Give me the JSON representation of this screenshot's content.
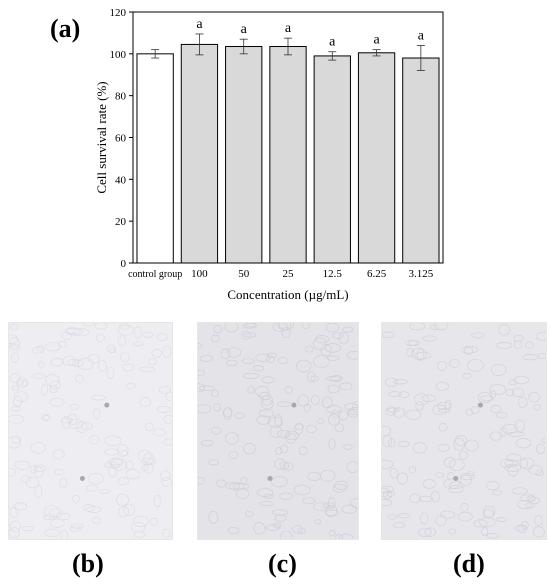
{
  "panels": {
    "a": "(a)",
    "b": "(b)",
    "c": "(c)",
    "d": "(d)"
  },
  "chart_data": {
    "type": "bar",
    "xlabel": "Concentration (µg/mL)",
    "ylabel": "Cell survival rate (%)",
    "ylim": [
      0,
      120
    ],
    "yticks": [
      0,
      20,
      40,
      60,
      80,
      100,
      120
    ],
    "grid": false,
    "categories": [
      "control group",
      "100",
      "50",
      "25",
      "12.5",
      "6.25",
      "3.125"
    ],
    "values": [
      100,
      104.5,
      103.5,
      103.5,
      99,
      100.5,
      98
    ],
    "errors": [
      2,
      5,
      3.5,
      4,
      2,
      1.5,
      6
    ],
    "significance": [
      "",
      "a",
      "a",
      "a",
      "a",
      "a",
      "a"
    ],
    "bar_colors": [
      "#ffffff",
      "#d9d9d9",
      "#d9d9d9",
      "#d9d9d9",
      "#d9d9d9",
      "#d9d9d9",
      "#d9d9d9"
    ]
  },
  "images": {
    "b": {
      "tone": "#eeeef2",
      "cell_tone": "#dcdce3"
    },
    "c": {
      "tone": "#e3e3e8",
      "cell_tone": "#cfcfd8"
    },
    "d": {
      "tone": "#e6e6eb",
      "cell_tone": "#d2d2da"
    }
  }
}
